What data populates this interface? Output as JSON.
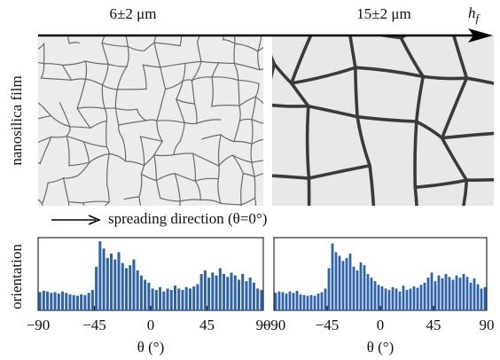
{
  "figure": {
    "top_left_label": "6±2 μm",
    "top_right_label": "15±2 μm",
    "arrow_label": {
      "main": "h",
      "sub": "f"
    },
    "image_ylabel": "nanosilica film",
    "hist_ylabel": "orientation",
    "direction_label": "spreading direction (θ=0°)"
  },
  "chart_data": [
    {
      "type": "histogram",
      "xlabel": "θ (°)",
      "color": "#2f63a8",
      "xlim": [
        -90,
        90
      ],
      "ylim": [
        0,
        100
      ],
      "xticks": [
        {
          "value": -90,
          "label": "−90"
        },
        {
          "value": -45,
          "label": "−45"
        },
        0,
        45,
        90
      ],
      "bins": [
        -90,
        -87,
        -84,
        -81,
        -78,
        -75,
        -72,
        -69,
        -66,
        -63,
        -60,
        -57,
        -54,
        -51,
        -48,
        -45,
        -42,
        -39,
        -36,
        -33,
        -30,
        -27,
        -24,
        -21,
        -18,
        -15,
        -12,
        -9,
        -6,
        -3,
        0,
        3,
        6,
        9,
        12,
        15,
        18,
        21,
        24,
        27,
        30,
        33,
        36,
        39,
        42,
        45,
        48,
        51,
        54,
        57,
        60,
        63,
        66,
        69,
        72,
        75,
        78,
        81,
        84,
        87,
        90
      ],
      "values": [
        25,
        27,
        26,
        24,
        25,
        23,
        26,
        24,
        22,
        21,
        20,
        22,
        21,
        24,
        28,
        60,
        95,
        85,
        72,
        78,
        70,
        80,
        65,
        58,
        62,
        70,
        55,
        48,
        42,
        38,
        30,
        28,
        32,
        26,
        30,
        28,
        34,
        30,
        28,
        32,
        30,
        33,
        36,
        50,
        55,
        45,
        52,
        48,
        58,
        50,
        46,
        52,
        48,
        42,
        50,
        40,
        45,
        38,
        30,
        28
      ]
    },
    {
      "type": "histogram",
      "xlabel": "θ (°)",
      "color": "#2f63a8",
      "xlim": [
        -90,
        90
      ],
      "ylim": [
        0,
        100
      ],
      "xticks": [
        {
          "value": -90,
          "label": "−90"
        },
        {
          "value": -45,
          "label": "−45"
        },
        0,
        45,
        90
      ],
      "bins": [
        -90,
        -87,
        -84,
        -81,
        -78,
        -75,
        -72,
        -69,
        -66,
        -63,
        -60,
        -57,
        -54,
        -51,
        -48,
        -45,
        -42,
        -39,
        -36,
        -33,
        -30,
        -27,
        -24,
        -21,
        -18,
        -15,
        -12,
        -9,
        -6,
        -3,
        0,
        3,
        6,
        9,
        12,
        15,
        18,
        21,
        24,
        27,
        30,
        33,
        36,
        39,
        42,
        45,
        48,
        51,
        54,
        57,
        60,
        63,
        66,
        69,
        72,
        75,
        78,
        81,
        84,
        87,
        90
      ],
      "values": [
        24,
        26,
        25,
        23,
        26,
        24,
        27,
        22,
        21,
        20,
        21,
        20,
        23,
        25,
        30,
        58,
        92,
        80,
        75,
        68,
        72,
        78,
        60,
        55,
        66,
        62,
        50,
        45,
        40,
        35,
        33,
        30,
        28,
        32,
        30,
        26,
        34,
        28,
        30,
        33,
        31,
        35,
        38,
        45,
        52,
        40,
        48,
        44,
        50,
        46,
        42,
        48,
        45,
        50,
        46,
        38,
        44,
        36,
        30,
        32
      ]
    }
  ]
}
